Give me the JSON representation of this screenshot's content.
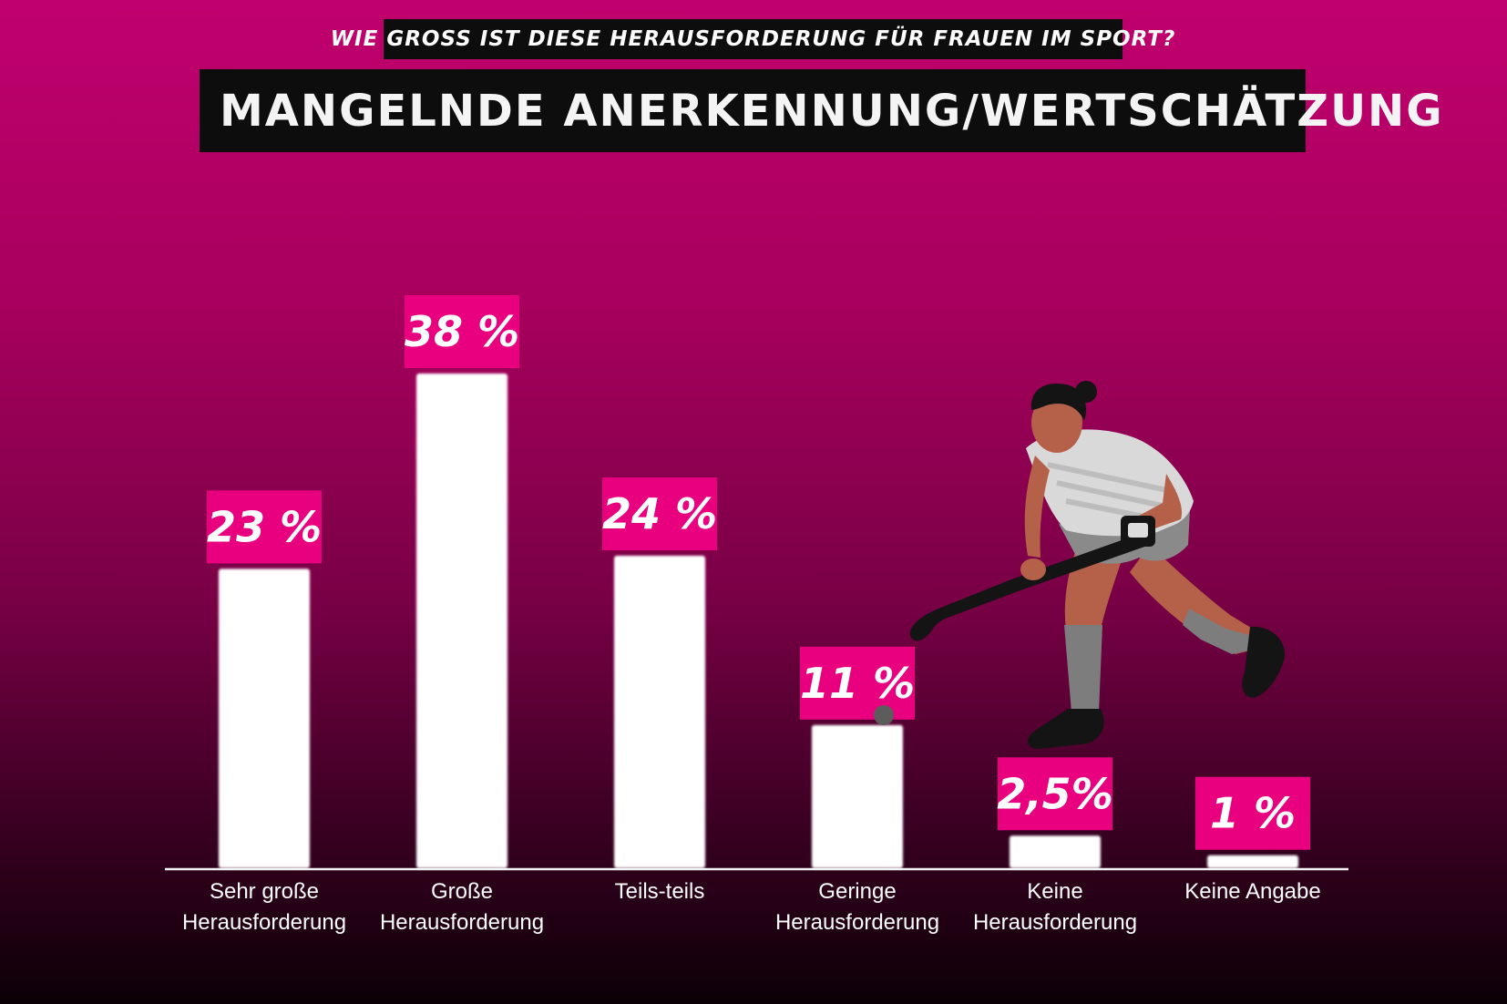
{
  "header": {
    "question": "WIE GROSS IST DIESE HERAUSFORDERUNG FÜR FRAUEN IM SPORT?",
    "title": "MANGELNDE ANERKENNUNG/WERTSCHÄTZUNG"
  },
  "colors": {
    "accent": "#e8007f",
    "bar": "#ffffff",
    "banner": "#0d0d0d"
  },
  "illustration": "field-hockey-player-illustration",
  "chart_data": {
    "type": "bar",
    "categories": [
      [
        "Sehr große",
        "Herausforderung"
      ],
      [
        "Große",
        "Herausforderung"
      ],
      [
        "Teils-teils"
      ],
      [
        "Geringe",
        "Herausforderung"
      ],
      [
        "Keine",
        "Herausforderung"
      ],
      [
        "Keine Angabe"
      ]
    ],
    "values": [
      23,
      38,
      24,
      11,
      2.5,
      1
    ],
    "value_labels": [
      "23 %",
      "38 %",
      "24 %",
      "11 %",
      "2,5%",
      "1 %"
    ],
    "ylim": [
      0,
      38
    ],
    "grid": false,
    "legend": "none"
  }
}
